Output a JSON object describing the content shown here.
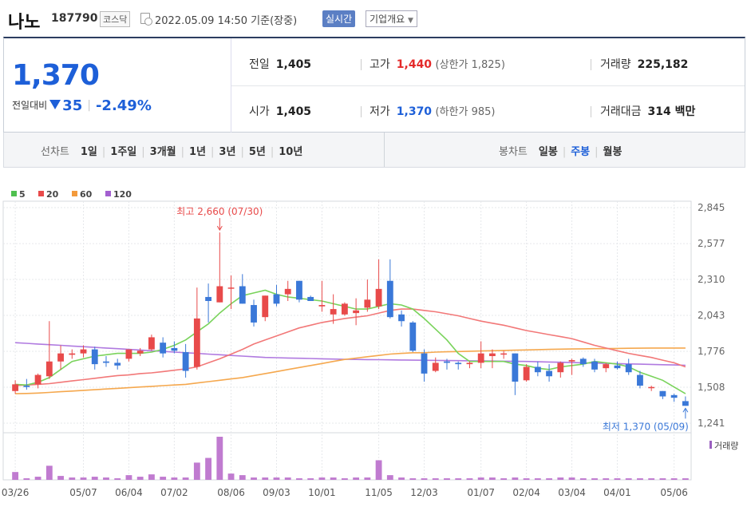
{
  "header": {
    "name": "나노",
    "code": "187790",
    "market": "코스닥",
    "timestamp": "2022.05.09 14:50",
    "basis": "기준(장중)",
    "realtime_label": "실시간",
    "company_label": "기업개요"
  },
  "price": {
    "current": "1,370",
    "change_label": "전일대비",
    "change": "35",
    "change_pct": "-2.49%"
  },
  "stats": {
    "prev_close_label": "전일",
    "prev_close": "1,405",
    "open_label": "시가",
    "open": "1,405",
    "high_label": "고가",
    "high": "1,440",
    "upper_limit": "(상한가 1,825)",
    "low_label": "저가",
    "low": "1,370",
    "lower_limit": "(하한가 985)",
    "volume_label": "거래량",
    "volume": "225,182",
    "amount_label": "거래대금",
    "amount": "314 백만"
  },
  "toolbar": {
    "line_chart_label": "선차트",
    "line_periods": [
      "1일",
      "1주일",
      "3개월",
      "1년",
      "3년",
      "5년",
      "10년"
    ],
    "candle_chart_label": "봉차트",
    "candle_periods": [
      "일봉",
      "주봉",
      "월봉"
    ],
    "candle_active": "주봉"
  },
  "chart_data": {
    "type": "candlestick",
    "interval": "weekly",
    "y_ticks": [
      2845,
      2577,
      2310,
      2043,
      1776,
      1508,
      1241
    ],
    "y_tick_labels": [
      "2,845",
      "2,577",
      "2,310",
      "2,043",
      "1,776",
      "1,508",
      "1,241"
    ],
    "ylim": [
      1241,
      2845
    ],
    "x_tick_labels": [
      "03/26",
      "05/07",
      "06/04",
      "07/02",
      "08/06",
      "09/03",
      "10/01",
      "11/05",
      "12/03",
      "01/07",
      "02/04",
      "03/04",
      "04/01",
      "05/06"
    ],
    "x_tick_index": [
      0,
      6,
      10,
      14,
      19,
      23,
      27,
      32,
      36,
      41,
      45,
      49,
      53,
      58
    ],
    "legend": [
      {
        "label": "5",
        "color": "#4fc04f"
      },
      {
        "label": "20",
        "color": "#e84a4a"
      },
      {
        "label": "60",
        "color": "#f39a3b"
      },
      {
        "label": "120",
        "color": "#a35fd0"
      }
    ],
    "up_color": "#e84a4a",
    "down_color": "#3a78d8",
    "ma5_color": "#79d35b",
    "ma20_color": "#f27878",
    "ma60_color": "#f5a84e",
    "ma120_color": "#b07ae0",
    "high_annotation": "최고 2,660 (07/30)",
    "high_annotation_index": 18,
    "high_value": 2660,
    "low_annotation": "최저 1,370 (05/09)",
    "low_annotation_index": 59,
    "low_value": 1370,
    "volume_label": "거래량",
    "candles": [
      {
        "o": 1480,
        "h": 1560,
        "l": 1460,
        "c": 1530
      },
      {
        "o": 1520,
        "h": 1570,
        "l": 1490,
        "c": 1510
      },
      {
        "o": 1530,
        "h": 1610,
        "l": 1500,
        "c": 1600
      },
      {
        "o": 1590,
        "h": 2000,
        "l": 1570,
        "c": 1700
      },
      {
        "o": 1700,
        "h": 1820,
        "l": 1640,
        "c": 1760
      },
      {
        "o": 1750,
        "h": 1790,
        "l": 1720,
        "c": 1760
      },
      {
        "o": 1760,
        "h": 1820,
        "l": 1730,
        "c": 1790
      },
      {
        "o": 1790,
        "h": 1810,
        "l": 1640,
        "c": 1680
      },
      {
        "o": 1700,
        "h": 1740,
        "l": 1660,
        "c": 1690
      },
      {
        "o": 1690,
        "h": 1720,
        "l": 1640,
        "c": 1670
      },
      {
        "o": 1720,
        "h": 1790,
        "l": 1700,
        "c": 1790
      },
      {
        "o": 1760,
        "h": 1800,
        "l": 1740,
        "c": 1780
      },
      {
        "o": 1790,
        "h": 1900,
        "l": 1780,
        "c": 1880
      },
      {
        "o": 1840,
        "h": 1880,
        "l": 1730,
        "c": 1760
      },
      {
        "o": 1800,
        "h": 1850,
        "l": 1760,
        "c": 1780
      },
      {
        "o": 1770,
        "h": 1830,
        "l": 1580,
        "c": 1630
      },
      {
        "o": 1660,
        "h": 2250,
        "l": 1640,
        "c": 2020
      },
      {
        "o": 2180,
        "h": 2280,
        "l": 1990,
        "c": 2150
      },
      {
        "o": 2140,
        "h": 2660,
        "l": 2140,
        "c": 2260
      },
      {
        "o": 2250,
        "h": 2340,
        "l": 2090,
        "c": 2250
      },
      {
        "o": 2260,
        "h": 2350,
        "l": 2130,
        "c": 2130
      },
      {
        "o": 2120,
        "h": 2160,
        "l": 1960,
        "c": 1990
      },
      {
        "o": 2030,
        "h": 2190,
        "l": 2000,
        "c": 2190
      },
      {
        "o": 2200,
        "h": 2270,
        "l": 2110,
        "c": 2130
      },
      {
        "o": 2200,
        "h": 2300,
        "l": 2150,
        "c": 2240
      },
      {
        "o": 2300,
        "h": 2300,
        "l": 2140,
        "c": 2160
      },
      {
        "o": 2180,
        "h": 2190,
        "l": 2150,
        "c": 2150
      },
      {
        "o": 2110,
        "h": 2300,
        "l": 2070,
        "c": 2120
      },
      {
        "o": 2050,
        "h": 2200,
        "l": 1980,
        "c": 2090
      },
      {
        "o": 2050,
        "h": 2140,
        "l": 2040,
        "c": 2130
      },
      {
        "o": 2060,
        "h": 2170,
        "l": 1970,
        "c": 2080
      },
      {
        "o": 2100,
        "h": 2310,
        "l": 2070,
        "c": 2160
      },
      {
        "o": 2110,
        "h": 2460,
        "l": 2090,
        "c": 2240
      },
      {
        "o": 2300,
        "h": 2460,
        "l": 2020,
        "c": 2030
      },
      {
        "o": 2050,
        "h": 2080,
        "l": 1960,
        "c": 2000
      },
      {
        "o": 1990,
        "h": 2000,
        "l": 1770,
        "c": 1780
      },
      {
        "o": 1760,
        "h": 1790,
        "l": 1550,
        "c": 1610
      },
      {
        "o": 1630,
        "h": 1730,
        "l": 1620,
        "c": 1690
      },
      {
        "o": 1700,
        "h": 1720,
        "l": 1640,
        "c": 1690
      },
      {
        "o": 1690,
        "h": 1700,
        "l": 1640,
        "c": 1680
      },
      {
        "o": 1680,
        "h": 1700,
        "l": 1650,
        "c": 1690
      },
      {
        "o": 1690,
        "h": 1850,
        "l": 1650,
        "c": 1760
      },
      {
        "o": 1740,
        "h": 1790,
        "l": 1650,
        "c": 1760
      },
      {
        "o": 1760,
        "h": 1780,
        "l": 1720,
        "c": 1760
      },
      {
        "o": 1760,
        "h": 1760,
        "l": 1450,
        "c": 1550
      },
      {
        "o": 1560,
        "h": 1680,
        "l": 1550,
        "c": 1660
      },
      {
        "o": 1660,
        "h": 1700,
        "l": 1590,
        "c": 1620
      },
      {
        "o": 1630,
        "h": 1680,
        "l": 1550,
        "c": 1590
      },
      {
        "o": 1620,
        "h": 1700,
        "l": 1580,
        "c": 1690
      },
      {
        "o": 1700,
        "h": 1720,
        "l": 1600,
        "c": 1710
      },
      {
        "o": 1720,
        "h": 1730,
        "l": 1660,
        "c": 1680
      },
      {
        "o": 1700,
        "h": 1720,
        "l": 1620,
        "c": 1640
      },
      {
        "o": 1650,
        "h": 1690,
        "l": 1620,
        "c": 1680
      },
      {
        "o": 1670,
        "h": 1700,
        "l": 1640,
        "c": 1650
      },
      {
        "o": 1680,
        "h": 1720,
        "l": 1600,
        "c": 1620
      },
      {
        "o": 1600,
        "h": 1630,
        "l": 1500,
        "c": 1520
      },
      {
        "o": 1510,
        "h": 1520,
        "l": 1480,
        "c": 1510
      },
      {
        "o": 1480,
        "h": 1480,
        "l": 1420,
        "c": 1440
      },
      {
        "o": 1450,
        "h": 1460,
        "l": 1400,
        "c": 1430
      },
      {
        "o": 1405,
        "h": 1440,
        "l": 1370,
        "c": 1370
      }
    ],
    "ma5": [
      1530,
      1525,
      1545,
      1580,
      1640,
      1700,
      1720,
      1740,
      1750,
      1760,
      1760,
      1760,
      1770,
      1790,
      1820,
      1860,
      1920,
      1980,
      2060,
      2130,
      2190,
      2210,
      2230,
      2200,
      2180,
      2170,
      2160,
      2150,
      2130,
      2110,
      2090,
      2090,
      2110,
      2130,
      2120,
      2090,
      2020,
      1940,
      1860,
      1760,
      1700,
      1700,
      1700,
      1700,
      1680,
      1670,
      1650,
      1640,
      1660,
      1670,
      1680,
      1700,
      1690,
      1680,
      1660,
      1620,
      1590,
      1560,
      1510,
      1460
    ],
    "ma20": [
      1520,
      1525,
      1530,
      1535,
      1545,
      1555,
      1565,
      1575,
      1585,
      1595,
      1600,
      1610,
      1615,
      1625,
      1635,
      1645,
      1660,
      1690,
      1720,
      1755,
      1790,
      1830,
      1860,
      1890,
      1920,
      1950,
      1970,
      1990,
      2005,
      2020,
      2030,
      2040,
      2060,
      2080,
      2090,
      2090,
      2080,
      2070,
      2055,
      2040,
      2020,
      2000,
      1985,
      1970,
      1950,
      1930,
      1915,
      1900,
      1885,
      1870,
      1845,
      1820,
      1800,
      1780,
      1760,
      1745,
      1730,
      1710,
      1690,
      1660
    ],
    "ma60": [
      1460,
      1462,
      1465,
      1470,
      1475,
      1480,
      1485,
      1490,
      1495,
      1500,
      1505,
      1510,
      1515,
      1520,
      1525,
      1530,
      1540,
      1550,
      1560,
      1570,
      1580,
      1595,
      1610,
      1625,
      1640,
      1655,
      1670,
      1685,
      1700,
      1715,
      1725,
      1735,
      1745,
      1755,
      1760,
      1765,
      1765,
      1770,
      1772,
      1774,
      1776,
      1778,
      1780,
      1782,
      1784,
      1786,
      1788,
      1790,
      1792,
      1793,
      1794,
      1795,
      1796,
      1797,
      1798,
      1799,
      1800,
      1800,
      1800,
      1800
    ],
    "ma120": [
      1840,
      1835,
      1830,
      1825,
      1820,
      1815,
      1810,
      1805,
      1800,
      1795,
      1790,
      1785,
      1780,
      1775,
      1770,
      1765,
      1760,
      1755,
      1750,
      1745,
      1740,
      1735,
      1730,
      1728,
      1726,
      1724,
      1722,
      1720,
      1718,
      1716,
      1715,
      1714,
      1713,
      1712,
      1711,
      1710,
      1709,
      1708,
      1707,
      1706,
      1705,
      1704,
      1703,
      1702,
      1701,
      1700,
      1698,
      1696,
      1694,
      1692,
      1690,
      1688,
      1686,
      1684,
      1682,
      1680,
      1678,
      1676,
      1674,
      1672
    ],
    "volume": [
      10,
      2,
      4,
      18,
      5,
      3,
      3,
      4,
      3,
      2,
      6,
      4,
      7,
      4,
      3,
      3,
      22,
      28,
      55,
      8,
      6,
      3,
      3,
      3,
      3,
      2,
      2,
      3,
      3,
      2,
      3,
      3,
      25,
      6,
      3,
      2,
      2,
      2,
      2,
      2,
      2,
      3,
      3,
      2,
      3,
      2,
      2,
      2,
      3,
      3,
      2,
      2,
      2,
      2,
      2,
      2,
      2,
      2,
      2,
      2
    ]
  }
}
